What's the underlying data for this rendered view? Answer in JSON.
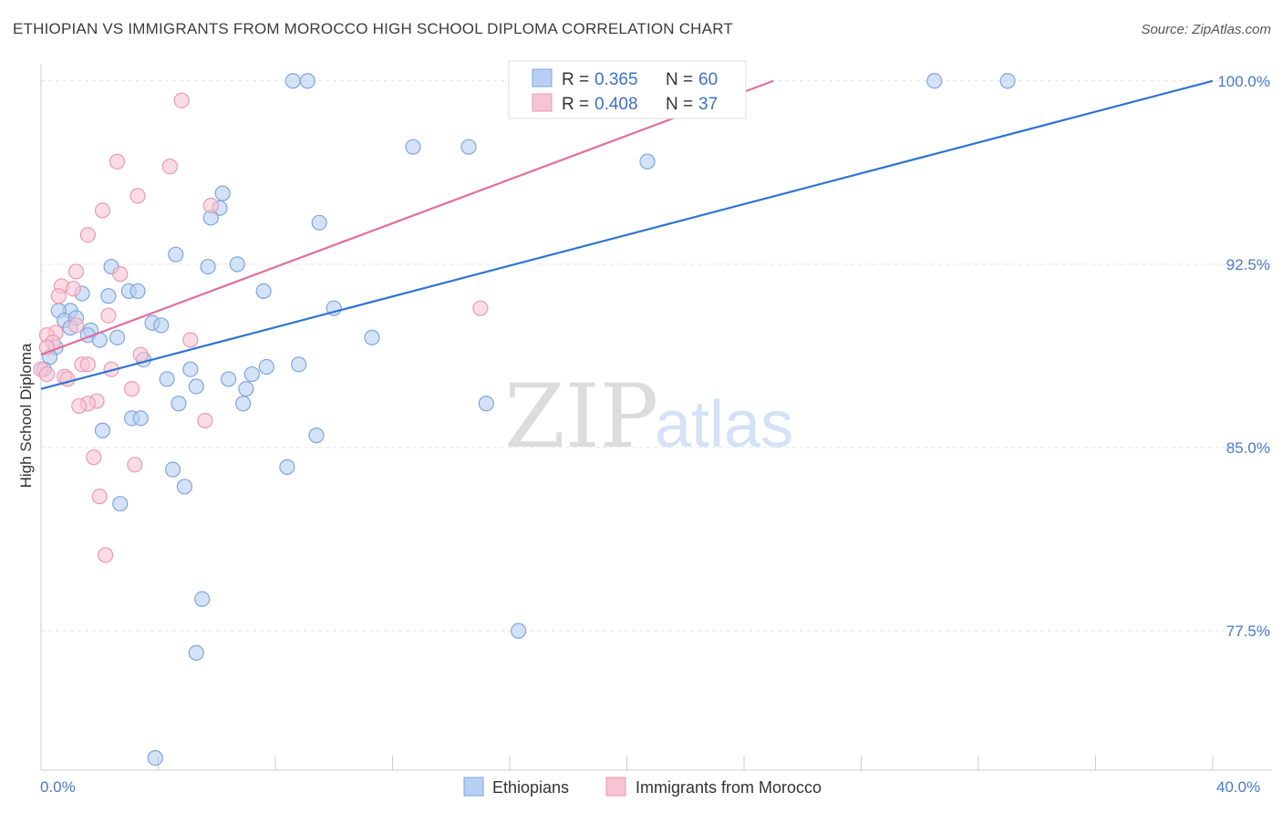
{
  "header": {
    "title": "ETHIOPIAN VS IMMIGRANTS FROM MOROCCO HIGH SCHOOL DIPLOMA CORRELATION CHART",
    "source": "Source: ZipAtlas.com"
  },
  "watermark": {
    "zip": "ZIP",
    "atlas": "atlas"
  },
  "legend": {
    "r_label": "R =",
    "n_label": "N =",
    "ethiopians": {
      "r": "0.365",
      "n": "60"
    },
    "morocco": {
      "r": "0.408",
      "n": "37"
    }
  },
  "colors": {
    "blue_fill": "#b7cff2",
    "blue_stroke": "#7ea6e0",
    "blue_line": "#2f74d0",
    "pink_fill": "#f8c4d4",
    "pink_stroke": "#eb9ab4",
    "pink_line": "#e0709a"
  },
  "chart_data": {
    "type": "scatter",
    "title": "ETHIOPIAN VS IMMIGRANTS FROM MOROCCO HIGH SCHOOL DIPLOMA CORRELATION CHART",
    "xlabel": "",
    "ylabel": "High School Diploma",
    "xlim": [
      0,
      40
    ],
    "ylim": [
      71.8,
      100.7
    ],
    "x_tick_labels": [
      "0.0%",
      "40.0%"
    ],
    "y_ticks": [
      100.0,
      92.5,
      85.0,
      77.5
    ],
    "y_tick_labels": [
      "100.0%",
      "92.5%",
      "85.0%",
      "77.5%"
    ],
    "grid": true,
    "series": [
      {
        "name": "Ethiopians",
        "color": "#7ea6e0",
        "trend": {
          "x": [
            0,
            40
          ],
          "y": [
            87.4,
            100.0
          ]
        },
        "points": [
          [
            8.6,
            100.0
          ],
          [
            9.1,
            100.0
          ],
          [
            30.5,
            100.0
          ],
          [
            33.0,
            100.0
          ],
          [
            12.7,
            97.3
          ],
          [
            14.6,
            97.3
          ],
          [
            20.7,
            96.7
          ],
          [
            6.2,
            95.4
          ],
          [
            6.1,
            94.8
          ],
          [
            5.8,
            94.4
          ],
          [
            9.5,
            94.2
          ],
          [
            4.6,
            92.9
          ],
          [
            2.4,
            92.4
          ],
          [
            5.7,
            92.4
          ],
          [
            6.7,
            92.5
          ],
          [
            3.0,
            91.4
          ],
          [
            2.3,
            91.2
          ],
          [
            3.3,
            91.4
          ],
          [
            1.4,
            91.3
          ],
          [
            7.6,
            91.4
          ],
          [
            1.0,
            90.6
          ],
          [
            0.6,
            90.6
          ],
          [
            0.8,
            90.2
          ],
          [
            1.2,
            90.3
          ],
          [
            3.8,
            90.1
          ],
          [
            4.1,
            90.0
          ],
          [
            1.0,
            89.9
          ],
          [
            1.7,
            89.8
          ],
          [
            10.0,
            90.7
          ],
          [
            1.6,
            89.6
          ],
          [
            2.0,
            89.4
          ],
          [
            2.6,
            89.5
          ],
          [
            11.3,
            89.5
          ],
          [
            0.5,
            89.1
          ],
          [
            0.3,
            88.7
          ],
          [
            3.5,
            88.6
          ],
          [
            0.1,
            88.2
          ],
          [
            5.1,
            88.2
          ],
          [
            7.7,
            88.3
          ],
          [
            8.8,
            88.4
          ],
          [
            4.3,
            87.8
          ],
          [
            6.4,
            87.8
          ],
          [
            7.2,
            88.0
          ],
          [
            5.3,
            87.5
          ],
          [
            7.0,
            87.4
          ],
          [
            4.7,
            86.8
          ],
          [
            6.9,
            86.8
          ],
          [
            15.2,
            86.8
          ],
          [
            3.1,
            86.2
          ],
          [
            3.4,
            86.2
          ],
          [
            2.1,
            85.7
          ],
          [
            9.4,
            85.5
          ],
          [
            4.5,
            84.1
          ],
          [
            8.4,
            84.2
          ],
          [
            4.9,
            83.4
          ],
          [
            2.7,
            82.7
          ],
          [
            5.5,
            78.8
          ],
          [
            16.3,
            77.5
          ],
          [
            5.3,
            76.6
          ],
          [
            3.9,
            72.3
          ]
        ]
      },
      {
        "name": "Immigrants from Morocco",
        "color": "#eb9ab4",
        "trend": {
          "x": [
            0,
            25
          ],
          "y": [
            88.8,
            100.0
          ]
        },
        "points": [
          [
            4.8,
            99.2
          ],
          [
            2.6,
            96.7
          ],
          [
            4.4,
            96.5
          ],
          [
            3.3,
            95.3
          ],
          [
            5.8,
            94.9
          ],
          [
            2.1,
            94.7
          ],
          [
            1.6,
            93.7
          ],
          [
            1.2,
            92.2
          ],
          [
            2.7,
            92.1
          ],
          [
            0.7,
            91.6
          ],
          [
            1.1,
            91.5
          ],
          [
            0.6,
            91.2
          ],
          [
            2.3,
            90.4
          ],
          [
            1.2,
            90.0
          ],
          [
            0.5,
            89.7
          ],
          [
            0.2,
            89.6
          ],
          [
            5.1,
            89.4
          ],
          [
            0.4,
            89.3
          ],
          [
            0.2,
            89.1
          ],
          [
            15.0,
            90.7
          ],
          [
            0.0,
            88.2
          ],
          [
            3.4,
            88.8
          ],
          [
            1.4,
            88.4
          ],
          [
            1.6,
            88.4
          ],
          [
            2.4,
            88.2
          ],
          [
            0.8,
            87.9
          ],
          [
            0.9,
            87.8
          ],
          [
            3.1,
            87.4
          ],
          [
            1.9,
            86.9
          ],
          [
            1.6,
            86.8
          ],
          [
            1.3,
            86.7
          ],
          [
            5.6,
            86.1
          ],
          [
            1.8,
            84.6
          ],
          [
            3.2,
            84.3
          ],
          [
            2.0,
            83.0
          ],
          [
            2.2,
            80.6
          ],
          [
            0.2,
            88.0
          ]
        ]
      }
    ]
  },
  "bottom_legend": {
    "ethiopians": "Ethiopians",
    "morocco": "Immigrants from Morocco"
  }
}
